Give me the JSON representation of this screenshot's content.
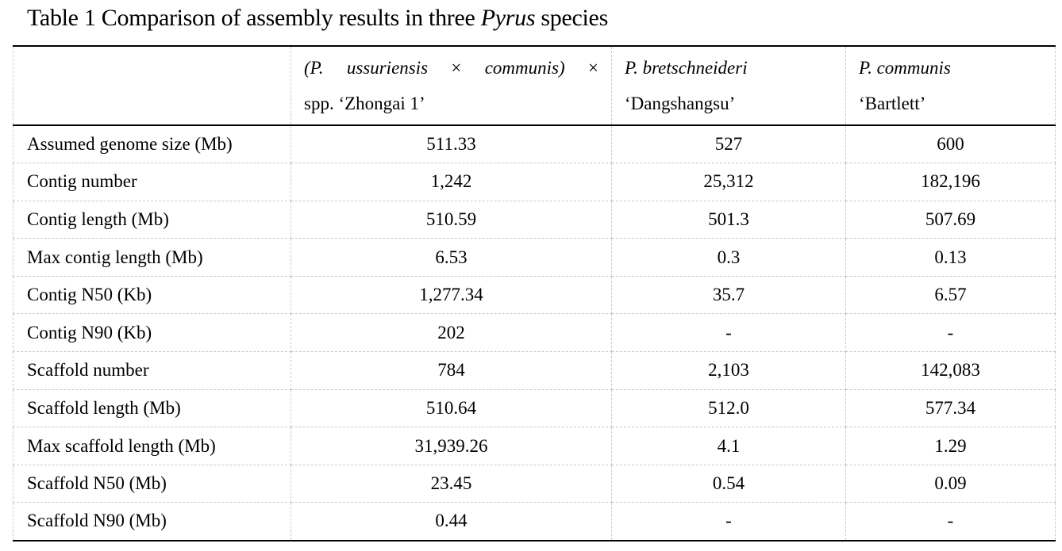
{
  "page": {
    "background": "#ffffff",
    "text_color": "#000000",
    "rule_color": "#000000",
    "grid_line_color": "#c9c9c9"
  },
  "title": {
    "segments": [
      {
        "text": "Table 1 Comparison of assembly results in three ",
        "italic": false
      },
      {
        "text": "Pyrus",
        "italic": true
      },
      {
        "text": " species",
        "italic": false
      }
    ]
  },
  "table": {
    "header": {
      "metric_column_label": "",
      "species": [
        {
          "line1_segments": [
            {
              "text": "(P.",
              "italic": true
            },
            {
              "text": "ussuriensis",
              "italic": true
            },
            {
              "text": "×",
              "italic": false
            },
            {
              "text": "communis)",
              "italic": true
            },
            {
              "text": "×",
              "italic": false
            }
          ],
          "line2": "spp. ‘Zhongai 1’"
        },
        {
          "line1_segments": [
            {
              "text": "P. bretschneideri",
              "italic": true
            }
          ],
          "line2": "‘Dangshangsu’"
        },
        {
          "line1_segments": [
            {
              "text": "P. communis",
              "italic": true
            }
          ],
          "line2": "‘Bartlett’"
        }
      ]
    },
    "rows": [
      {
        "label": "Assumed genome size (Mb)",
        "values": [
          "511.33",
          "527",
          "600"
        ]
      },
      {
        "label": "Contig number",
        "values": [
          "1,242",
          "25,312",
          "182,196"
        ]
      },
      {
        "label": "Contig length (Mb)",
        "values": [
          "510.59",
          "501.3",
          "507.69"
        ]
      },
      {
        "label": "Max contig length (Mb)",
        "values": [
          "6.53",
          "0.3",
          "0.13"
        ]
      },
      {
        "label": "Contig N50 (Kb)",
        "values": [
          "1,277.34",
          "35.7",
          "6.57"
        ]
      },
      {
        "label": "Contig N90 (Kb)",
        "values": [
          "202",
          "-",
          "-"
        ]
      },
      {
        "label": "Scaffold number",
        "values": [
          "784",
          "2,103",
          "142,083"
        ]
      },
      {
        "label": "Scaffold length (Mb)",
        "values": [
          "510.64",
          "512.0",
          "577.34"
        ]
      },
      {
        "label": "Max scaffold length (Mb)",
        "values": [
          "31,939.26",
          "4.1",
          "1.29"
        ]
      },
      {
        "label": "Scaffold N50 (Mb)",
        "values": [
          "23.45",
          "0.54",
          "0.09"
        ]
      },
      {
        "label": "Scaffold N90 (Mb)",
        "values": [
          "0.44",
          "-",
          "-"
        ]
      }
    ]
  }
}
